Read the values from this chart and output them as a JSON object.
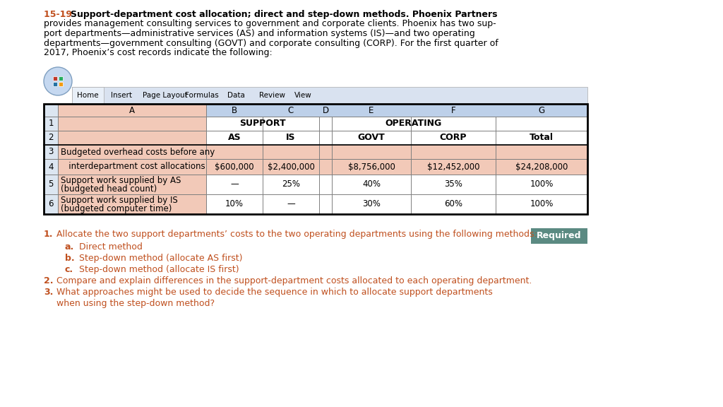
{
  "problem_number": "15-19",
  "problem_title_bold": "Support-department cost allocation; direct and step-down methods.",
  "intro_suffix": " Phoenix Partners",
  "intro_lines": [
    "provides management consulting services to government and corporate clients. Phoenix has two sup-",
    "port departments—administrative services (AS) and information systems (IS)—and two operating",
    "departments—government consulting (GOVT) and corporate consulting (CORP). For the first quarter of",
    "2017, Phoenix’s cost records indicate the following:"
  ],
  "spreadsheet": {
    "menu_items": [
      "Home",
      "Insert",
      "Page Layout",
      "Formulas",
      "Data",
      "Review",
      "View"
    ],
    "col_headers": [
      "A",
      "B",
      "C",
      "D",
      "E",
      "F",
      "G"
    ],
    "row3_label": "Budgeted overhead costs before any",
    "row4_label": "   interdepartment cost allocations",
    "row4_data": [
      "$600,000",
      "$2,400,000",
      "",
      "$8,756,000",
      "$12,452,000",
      "$24,208,000"
    ],
    "row5a_label": "Support work supplied by AS",
    "row5b_label": "(budgeted head count)",
    "row5_data": [
      "—",
      "25%",
      "",
      "40%",
      "35%",
      "100%"
    ],
    "row6a_label": "Support work supplied by IS",
    "row6b_label": "(budgeted computer time)",
    "row6_data": [
      "10%",
      "—",
      "",
      "30%",
      "60%",
      "100%"
    ]
  },
  "required_label": "Required",
  "questions": [
    {
      "num": "1.",
      "text": "Allocate the two support departments’ costs to the two operating departments using the following methods:"
    },
    {
      "num": "a.",
      "text": "Direct method",
      "indent": true
    },
    {
      "num": "b.",
      "text": "Step-down method (allocate AS first)",
      "indent": true
    },
    {
      "num": "c.",
      "text": "Step-down method (allocate IS first)",
      "indent": true
    },
    {
      "num": "2.",
      "text": "Compare and explain differences in the support-department costs allocated to each operating department."
    },
    {
      "num": "3.",
      "text": "What approaches might be used to decide the sequence in which to allocate support departments"
    },
    {
      "num": "",
      "text": "when using the step-down method?",
      "continuation": true
    }
  ],
  "colors": {
    "background": "#ffffff",
    "orange_bold": "#c0501f",
    "body_text": "#000000",
    "question_text": "#c0501f",
    "table_header_bg": "#bdd0e9",
    "table_col_a_bg": "#f2c9b8",
    "table_row_num_bg": "#dce6f1",
    "table_white_bg": "#ffffff",
    "table_border": "#7f7f7f",
    "toolbar_bg": "#d9e2f0",
    "required_bg": "#5b8a82",
    "required_text": "#ffffff"
  }
}
